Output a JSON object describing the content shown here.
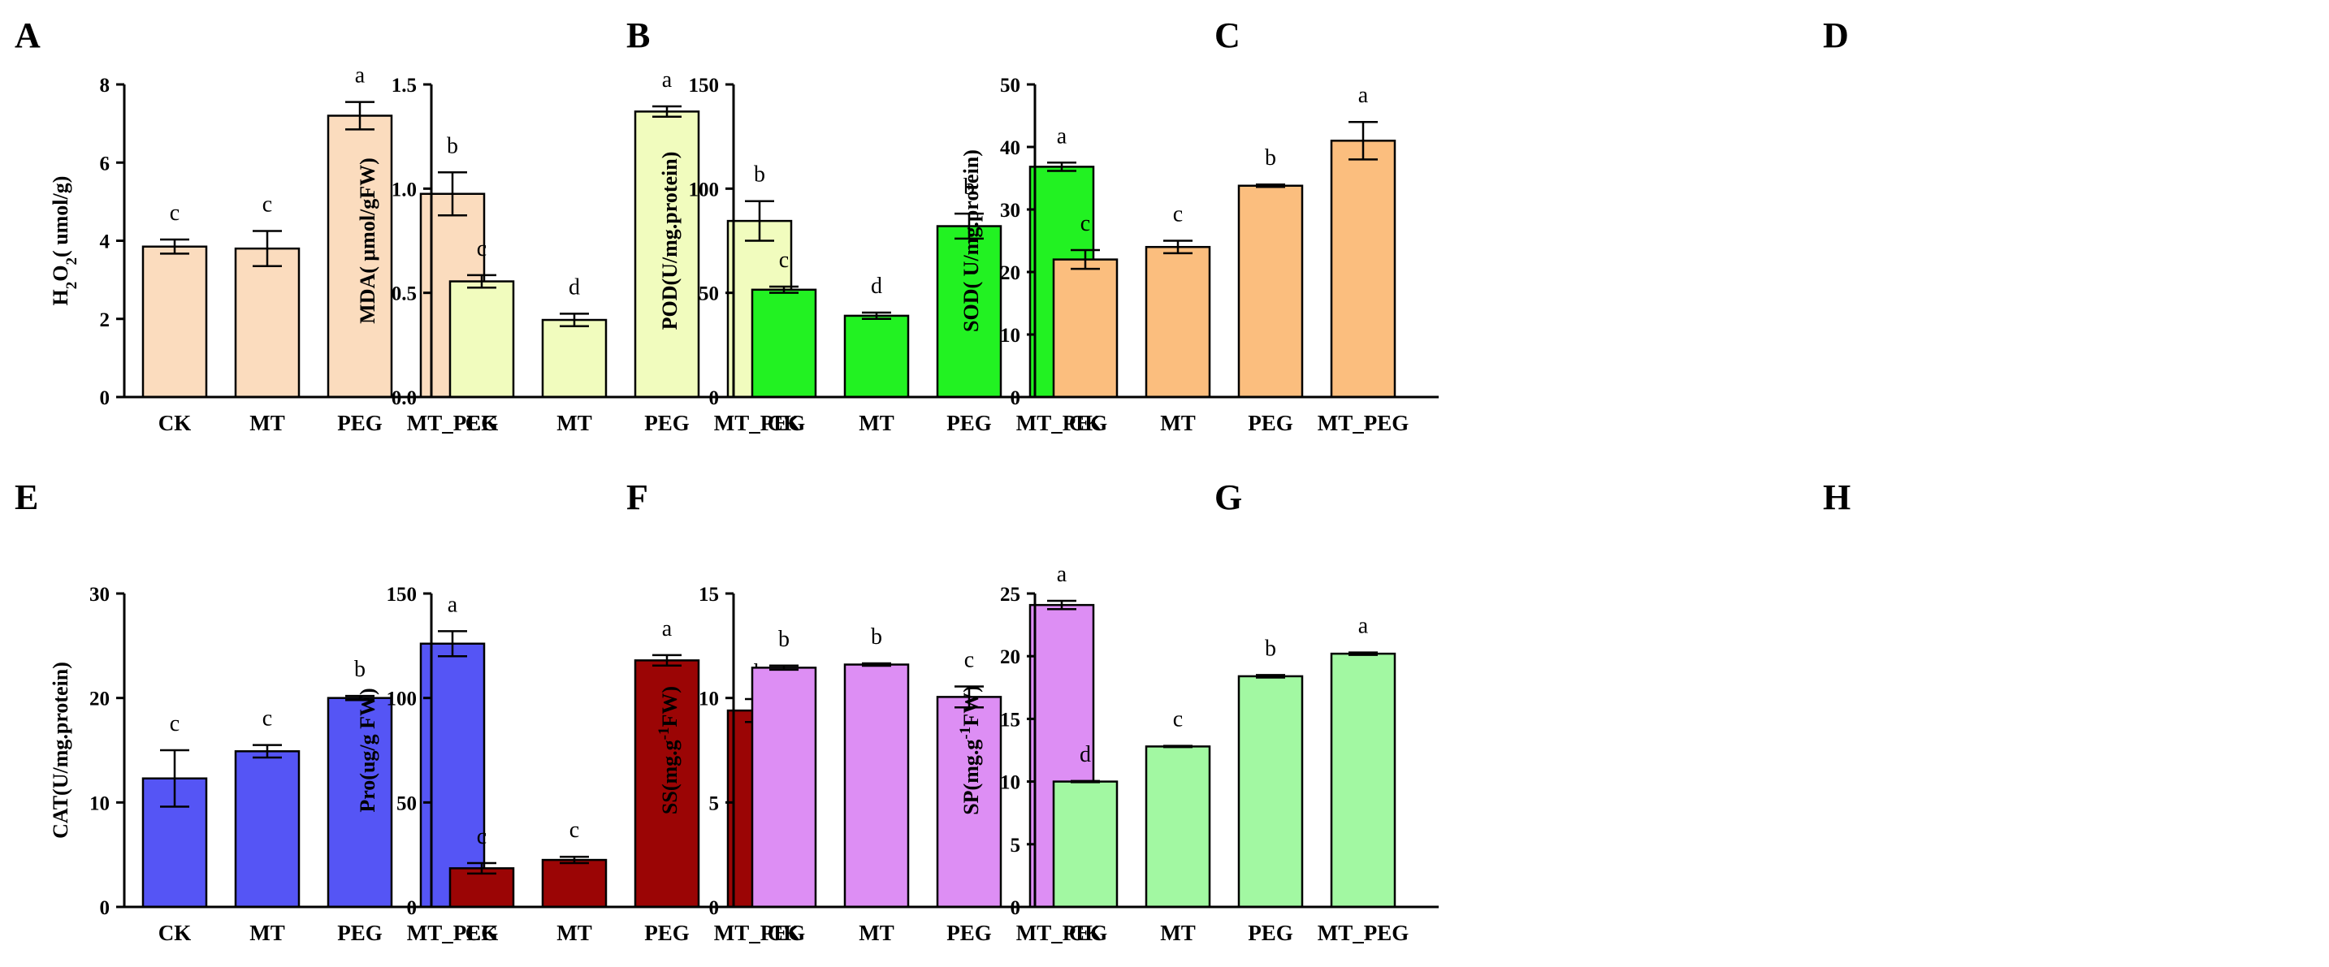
{
  "chart_data": [
    {
      "letter": "A",
      "type": "bar",
      "ylabel": {
        "main": "H",
        "sub": "2",
        "mid": "O",
        "sub2": "2",
        "rest": "( umol/g)"
      },
      "ylim": [
        0,
        8
      ],
      "yticks": [
        0,
        2,
        4,
        6,
        8
      ],
      "categories": [
        "CK",
        "MT",
        "PEG",
        "MT_PEG"
      ],
      "values": [
        3.85,
        3.8,
        7.2,
        5.2
      ],
      "errors": [
        0.18,
        0.45,
        0.35,
        0.55
      ],
      "letters": [
        "c",
        "c",
        "a",
        "b"
      ],
      "color": "#fbdcbe"
    },
    {
      "letter": "B",
      "type": "bar",
      "ylabel": {
        "main": "MDA( μmol/gFW)"
      },
      "ylim": [
        0,
        1.5
      ],
      "yticks": [
        "0.0",
        "0.5",
        "1.0",
        "1.5"
      ],
      "categories": [
        "CK",
        "MT",
        "PEG",
        "MT_PEG"
      ],
      "values": [
        0.555,
        0.37,
        1.37,
        0.845
      ],
      "errors": [
        0.03,
        0.03,
        0.025,
        0.095
      ],
      "letters": [
        "c",
        "d",
        "a",
        "b"
      ],
      "color": "#f1fcbe"
    },
    {
      "letter": "C",
      "type": "bar",
      "ylabel": {
        "main": "POD(U/mg.protein)"
      },
      "ylim": [
        0,
        150
      ],
      "yticks": [
        0,
        50,
        100,
        150
      ],
      "categories": [
        "CK",
        "MT",
        "PEG",
        "MT_PEG"
      ],
      "values": [
        51.5,
        39,
        82,
        110.5
      ],
      "errors": [
        1.5,
        1.5,
        6,
        2
      ],
      "letters": [
        "c",
        "d",
        "b",
        "a"
      ],
      "color": "#22f222"
    },
    {
      "letter": "D",
      "type": "bar",
      "ylabel": {
        "main": "SOD( U/mg.protein)"
      },
      "ylim": [
        0,
        50
      ],
      "yticks": [
        0,
        10,
        20,
        30,
        40,
        50
      ],
      "categories": [
        "CK",
        "MT",
        "PEG",
        "MT_PEG"
      ],
      "values": [
        22,
        24,
        33.8,
        41
      ],
      "errors": [
        1.5,
        1,
        0.2,
        3
      ],
      "letters": [
        "c",
        "c",
        "b",
        "a"
      ],
      "color": "#fbbe7e"
    },
    {
      "letter": "E",
      "type": "bar",
      "ylabel": {
        "main": "CAT(U/mg.protein)"
      },
      "ylim": [
        0,
        30
      ],
      "yticks": [
        0,
        10,
        20,
        30
      ],
      "categories": [
        "CK",
        "MT",
        "PEG",
        "MT_PEG"
      ],
      "values": [
        12.3,
        14.9,
        20,
        25.2
      ],
      "errors": [
        2.7,
        0.6,
        0.2,
        1.2
      ],
      "letters": [
        "c",
        "c",
        "b",
        "a"
      ],
      "color": "#5555f5"
    },
    {
      "letter": "F",
      "type": "bar",
      "ylabel": {
        "main": "Pro(ug/g FW)"
      },
      "ylim": [
        0,
        150
      ],
      "yticks": [
        0,
        50,
        100,
        150
      ],
      "categories": [
        "CK",
        "MT",
        "PEG",
        "MT_PEG"
      ],
      "values": [
        18.5,
        22.5,
        118,
        94
      ],
      "errors": [
        2.5,
        1.5,
        2.5,
        5.5
      ],
      "letters": [
        "c",
        "c",
        "a",
        "b"
      ],
      "color": "#9b0505"
    },
    {
      "letter": "G",
      "type": "bar",
      "ylabel": {
        "main": "SS(mg.g",
        "sup": "-1",
        "rest": "FW)"
      },
      "ylim": [
        0,
        15
      ],
      "yticks": [
        0,
        5,
        10,
        15
      ],
      "categories": [
        "CK",
        "MT",
        "PEG",
        "MT_PEG"
      ],
      "values": [
        11.45,
        11.6,
        10.05,
        14.45
      ],
      "errors": [
        0.1,
        0.06,
        0.5,
        0.2
      ],
      "letters": [
        "b",
        "b",
        "c",
        "a"
      ],
      "color": "#dd8ef4"
    },
    {
      "letter": "H",
      "type": "bar",
      "ylabel": {
        "main": "SP(mg.g",
        "sup": "-1",
        "rest": "FW)"
      },
      "ylim": [
        0,
        25
      ],
      "yticks": [
        0,
        5,
        10,
        15,
        20,
        25
      ],
      "categories": [
        "CK",
        "MT",
        "PEG",
        "MT_PEG"
      ],
      "values": [
        10,
        12.8,
        18.4,
        20.2
      ],
      "errors": [
        0.05,
        0.05,
        0.1,
        0.1
      ],
      "letters": [
        "d",
        "c",
        "b",
        "a"
      ],
      "color": "#a2f8a2"
    }
  ]
}
